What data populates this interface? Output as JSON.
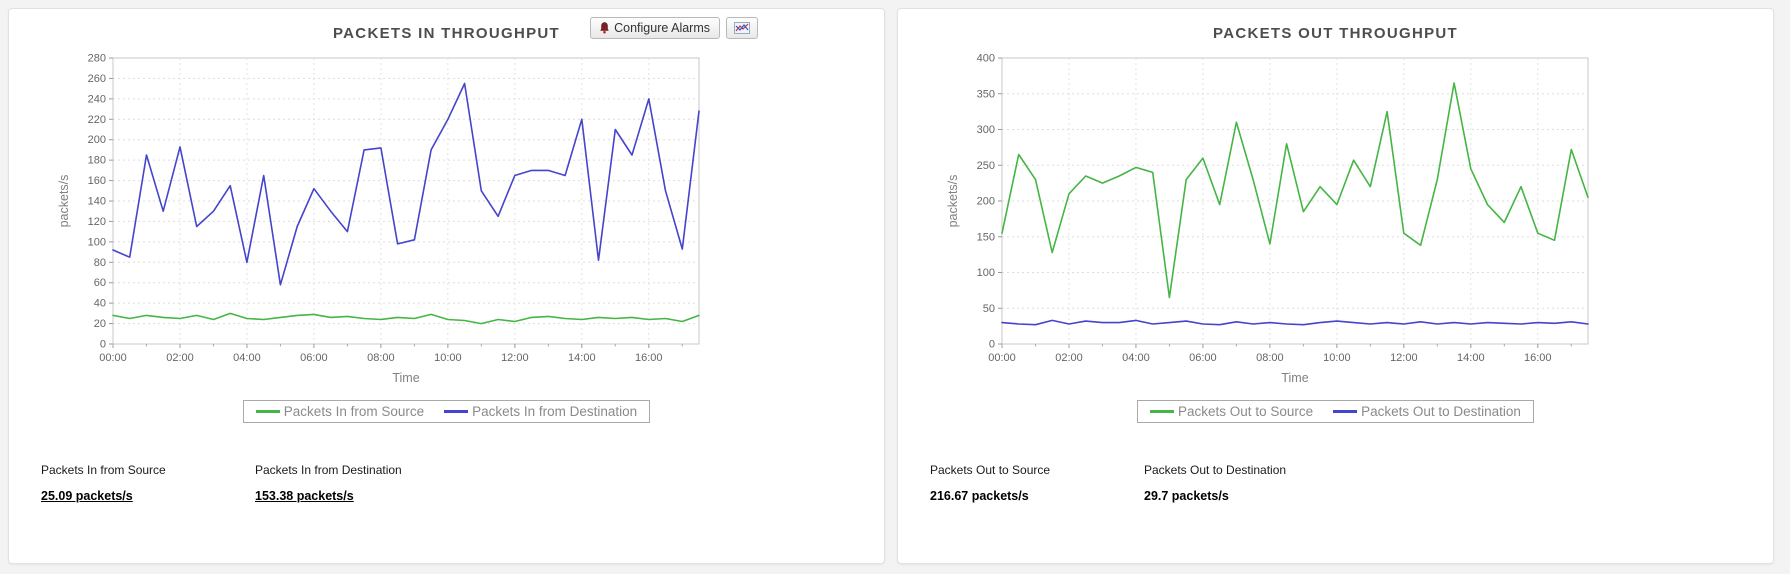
{
  "toolbar": {
    "configure_alarms_label": "Configure Alarms"
  },
  "colors": {
    "green_series": "#45b545",
    "blue_series": "#4444cc",
    "grid": "#dddddd",
    "axis_text": "#666666",
    "title_text": "#4d4d4d"
  },
  "chart_data": [
    {
      "type": "line",
      "title": "PACKETS IN THROUGHPUT",
      "xlabel": "Time",
      "ylabel": "packets/s",
      "ylim": [
        0,
        280
      ],
      "yticks": [
        0,
        20,
        40,
        60,
        80,
        100,
        120,
        140,
        160,
        180,
        200,
        220,
        240,
        260,
        280
      ],
      "x_tick_labels": [
        "00:00",
        "02:00",
        "04:00",
        "06:00",
        "08:00",
        "10:00",
        "12:00",
        "14:00",
        "16:00"
      ],
      "x_tick_every": 4,
      "grid": true,
      "legend_position": "bottom",
      "x": [
        "00:00",
        "00:30",
        "01:00",
        "01:30",
        "02:00",
        "02:30",
        "03:00",
        "03:30",
        "04:00",
        "04:30",
        "05:00",
        "05:30",
        "06:00",
        "06:30",
        "07:00",
        "07:30",
        "08:00",
        "08:30",
        "09:00",
        "09:30",
        "10:00",
        "10:30",
        "11:00",
        "11:30",
        "12:00",
        "12:30",
        "13:00",
        "13:30",
        "14:00",
        "14:30",
        "15:00",
        "15:30",
        "16:00",
        "16:30",
        "17:00",
        "17:30"
      ],
      "series": [
        {
          "name": "Packets In from Source",
          "color": "#45b545",
          "values": [
            28,
            25,
            28,
            26,
            25,
            28,
            24,
            30,
            25,
            24,
            26,
            28,
            29,
            26,
            27,
            25,
            24,
            26,
            25,
            29,
            24,
            23,
            20,
            24,
            22,
            26,
            27,
            25,
            24,
            26,
            25,
            26,
            24,
            25,
            22,
            28
          ]
        },
        {
          "name": "Packets In from Destination",
          "color": "#4444cc",
          "values": [
            92,
            85,
            185,
            130,
            193,
            115,
            130,
            155,
            80,
            165,
            58,
            115,
            152,
            130,
            110,
            190,
            192,
            98,
            102,
            190,
            220,
            255,
            150,
            125,
            165,
            170,
            170,
            165,
            220,
            82,
            210,
            185,
            240,
            150,
            93,
            228
          ]
        }
      ],
      "stats": [
        {
          "label": "Packets In from Source",
          "value": "25.09 packets/s",
          "link": true
        },
        {
          "label": "Packets In from Destination",
          "value": "153.38 packets/s",
          "link": true
        }
      ]
    },
    {
      "type": "line",
      "title": "PACKETS OUT THROUGHPUT",
      "xlabel": "Time",
      "ylabel": "packets/s",
      "ylim": [
        0,
        400
      ],
      "yticks": [
        0,
        50,
        100,
        150,
        200,
        250,
        300,
        350,
        400
      ],
      "x_tick_labels": [
        "00:00",
        "02:00",
        "04:00",
        "06:00",
        "08:00",
        "10:00",
        "12:00",
        "14:00",
        "16:00"
      ],
      "x_tick_every": 4,
      "grid": true,
      "legend_position": "bottom",
      "x": [
        "00:00",
        "00:30",
        "01:00",
        "01:30",
        "02:00",
        "02:30",
        "03:00",
        "03:30",
        "04:00",
        "04:30",
        "05:00",
        "05:30",
        "06:00",
        "06:30",
        "07:00",
        "07:30",
        "08:00",
        "08:30",
        "09:00",
        "09:30",
        "10:00",
        "10:30",
        "11:00",
        "11:30",
        "12:00",
        "12:30",
        "13:00",
        "13:30",
        "14:00",
        "14:30",
        "15:00",
        "15:30",
        "16:00",
        "16:30",
        "17:00",
        "17:30"
      ],
      "series": [
        {
          "name": "Packets Out to Source",
          "color": "#45b545",
          "values": [
            155,
            265,
            230,
            128,
            210,
            235,
            225,
            235,
            247,
            240,
            65,
            230,
            260,
            195,
            310,
            230,
            140,
            280,
            185,
            220,
            195,
            257,
            220,
            325,
            155,
            138,
            230,
            365,
            245,
            195,
            170,
            220,
            155,
            145,
            272,
            205
          ]
        },
        {
          "name": "Packets Out to Destination",
          "color": "#4444cc",
          "values": [
            30,
            28,
            27,
            33,
            28,
            32,
            30,
            30,
            33,
            28,
            30,
            32,
            28,
            27,
            31,
            28,
            30,
            28,
            27,
            30,
            32,
            30,
            28,
            30,
            28,
            31,
            28,
            30,
            28,
            30,
            29,
            28,
            30,
            29,
            31,
            28
          ]
        }
      ],
      "stats": [
        {
          "label": "Packets Out to Source",
          "value": "216.67 packets/s",
          "link": false
        },
        {
          "label": "Packets Out to Destination",
          "value": "29.7 packets/s",
          "link": false
        }
      ]
    }
  ]
}
